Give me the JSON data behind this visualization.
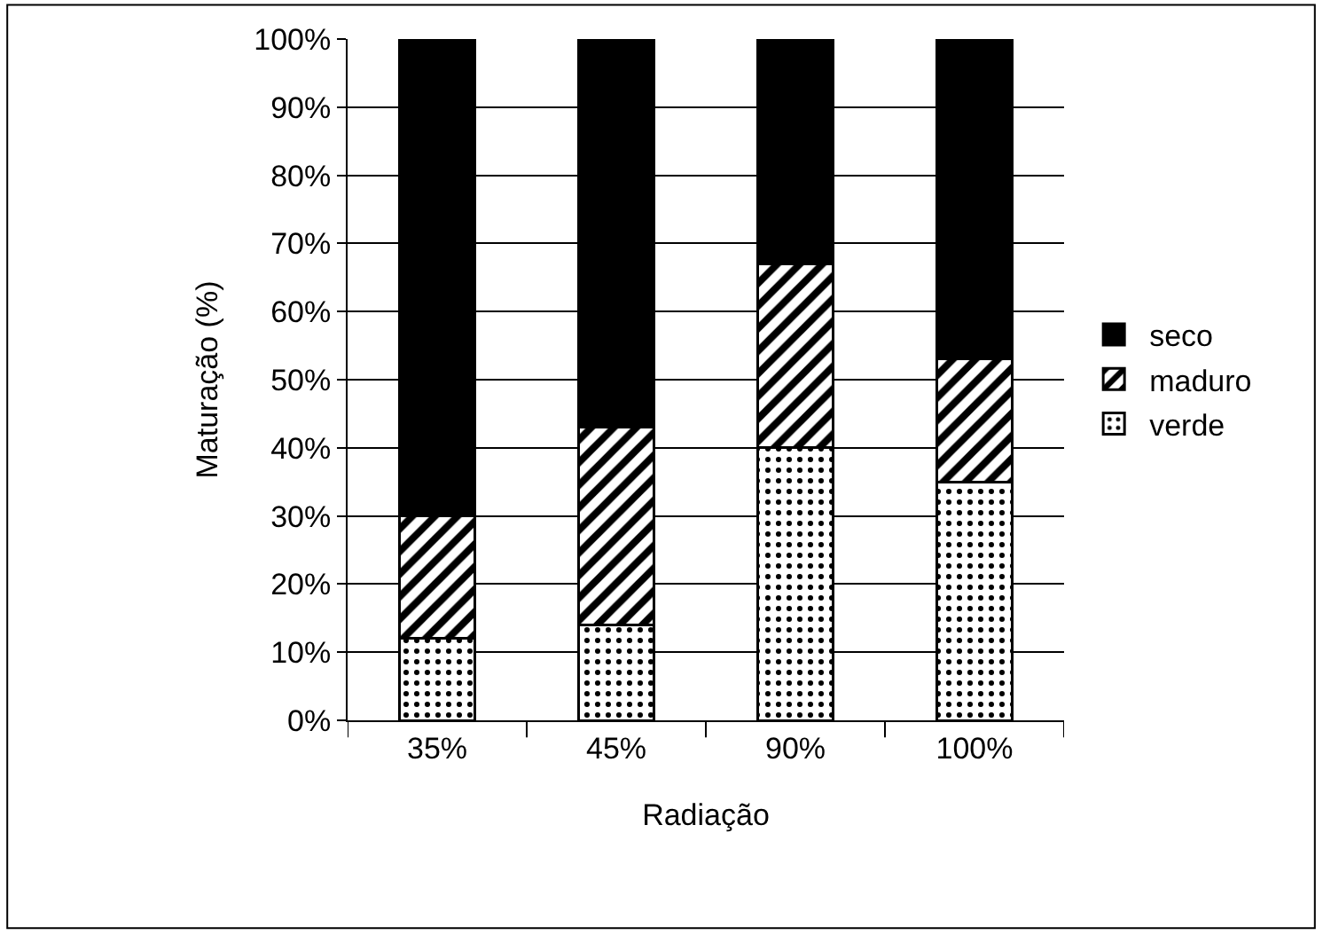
{
  "chart_data": {
    "type": "bar",
    "stacked": true,
    "xlabel": "Radiação",
    "ylabel": "Maturação (%)",
    "categories": [
      "35%",
      "45%",
      "90%",
      "100%"
    ],
    "series": [
      {
        "name": "verde",
        "color": "#000000",
        "values": [
          12,
          14,
          40,
          35
        ]
      },
      {
        "name": "maduro",
        "color": "#000000",
        "values": [
          18,
          29,
          27,
          18
        ]
      },
      {
        "name": "seco",
        "color": "#000000",
        "values": [
          70,
          57,
          33,
          47
        ]
      }
    ],
    "ylim": [
      0,
      100
    ],
    "yticks": [
      {
        "value": 0,
        "label": "0%"
      },
      {
        "value": 10,
        "label": "10%"
      },
      {
        "value": 20,
        "label": "20%"
      },
      {
        "value": 30,
        "label": "30%"
      },
      {
        "value": 40,
        "label": "40%"
      },
      {
        "value": 50,
        "label": "50%"
      },
      {
        "value": 60,
        "label": "60%"
      },
      {
        "value": 70,
        "label": "70%"
      },
      {
        "value": 80,
        "label": "80%"
      },
      {
        "value": 90,
        "label": "90%"
      },
      {
        "value": 100,
        "label": "100%"
      }
    ],
    "grid": "y",
    "legend": "right"
  }
}
